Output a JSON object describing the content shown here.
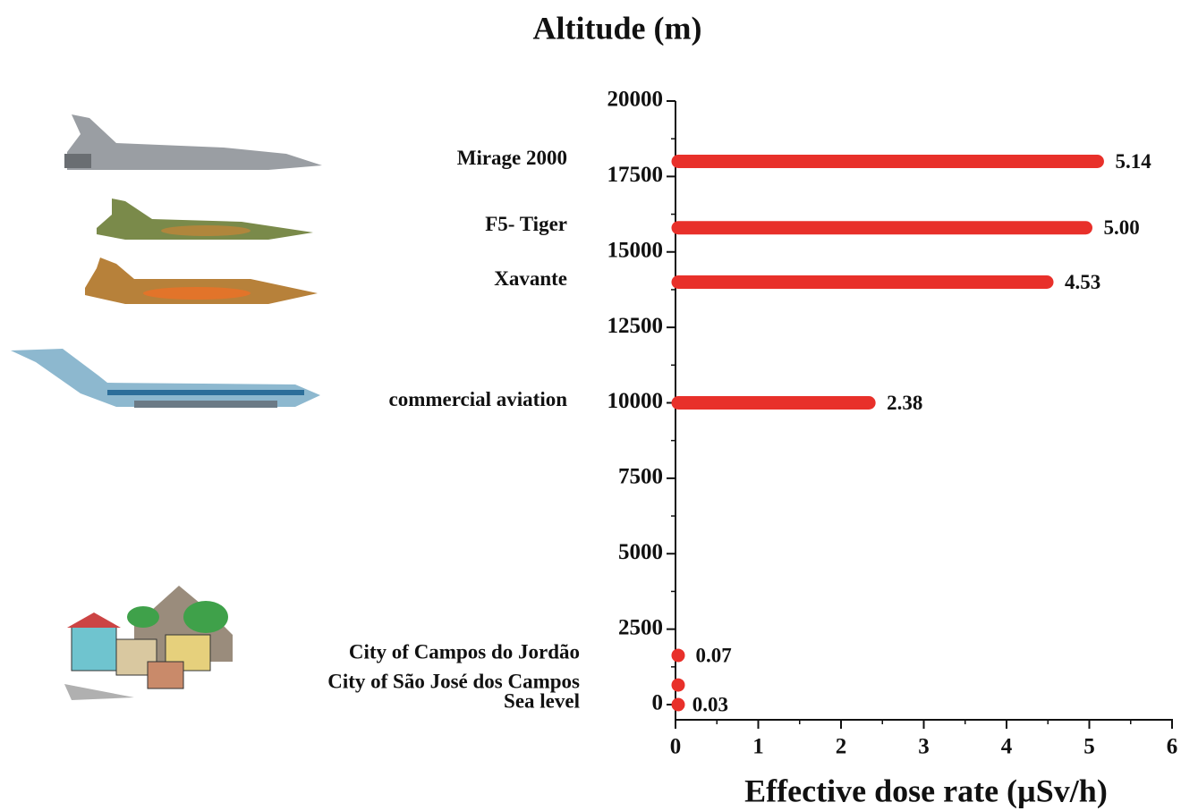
{
  "chart_data": {
    "type": "bar",
    "orientation": "horizontal",
    "title": "Altitude (m)",
    "x_label": "Effective dose rate (µSv/h)",
    "categories": [
      "Mirage 2000",
      "F5- Tiger",
      "Xavante",
      "commercial aviation",
      "City of Campos do Jordão",
      "City of São José dos Campos",
      "Sea level"
    ],
    "y": [
      18000,
      15800,
      14000,
      10000,
      1630,
      650,
      0
    ],
    "values": [
      5.14,
      5.0,
      4.53,
      2.38,
      0.07,
      0.05,
      0.03
    ],
    "value_labels": [
      "5.14",
      "5.00",
      "4.53",
      "2.38",
      "0.07",
      null,
      "0.03"
    ],
    "color": "#e8302a",
    "xlim": [
      0,
      6
    ],
    "xticks": [
      0,
      1,
      2,
      3,
      4,
      5,
      6
    ],
    "ylim": [
      0,
      20000
    ],
    "yticks": [
      0,
      2500,
      5000,
      7500,
      10000,
      12500,
      15000,
      17500,
      20000
    ]
  }
}
